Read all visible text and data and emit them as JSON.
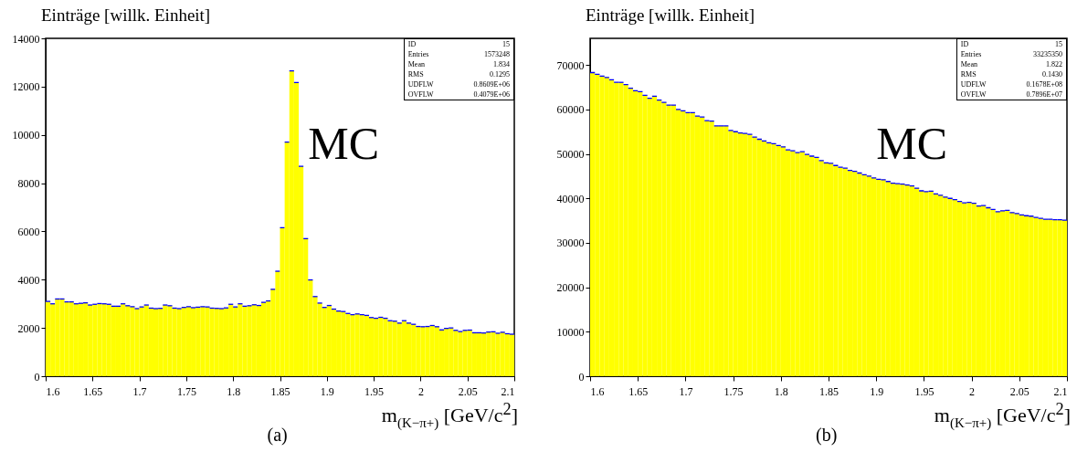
{
  "chart_data": [
    {
      "type": "histogram",
      "ylabel": "Einträge [willk. Einheit]",
      "xlabel": "m$_{(K−π+)}$ [GeV/c$^{2}$]",
      "annotations": [
        "MC",
        "ID",
        "15",
        "Entries",
        "1573248",
        "Mean",
        "1.834",
        "RMS",
        "0.1295",
        "UDFLW",
        "0.8609E+06",
        "OVFLW",
        "0.4079E+06",
        "(a)"
      ],
      "color": "#ffff00",
      "grid": false,
      "xlim": [
        1.6,
        2.1
      ],
      "xticks": [
        1.6,
        1.65,
        1.7,
        1.75,
        1.8,
        1.85,
        1.9,
        1.95,
        2,
        2.05,
        2.1
      ],
      "ylim": [
        0,
        14000
      ],
      "yticks": [
        0,
        2000,
        4000,
        6000,
        8000,
        10000,
        12000,
        14000
      ],
      "bins": [
        1.6,
        1.605,
        1.61,
        1.615,
        1.62,
        1.625,
        1.63,
        1.635,
        1.64,
        1.645,
        1.65,
        1.655,
        1.66,
        1.665,
        1.67,
        1.675,
        1.68,
        1.685,
        1.69,
        1.695,
        1.7,
        1.705,
        1.71,
        1.715,
        1.72,
        1.725,
        1.73,
        1.735,
        1.74,
        1.745,
        1.75,
        1.755,
        1.76,
        1.765,
        1.77,
        1.775,
        1.78,
        1.785,
        1.79,
        1.795,
        1.8,
        1.805,
        1.81,
        1.815,
        1.82,
        1.825,
        1.83,
        1.835,
        1.84,
        1.845,
        1.85,
        1.855,
        1.86,
        1.865,
        1.87,
        1.875,
        1.88,
        1.885,
        1.89,
        1.895,
        1.9,
        1.905,
        1.91,
        1.915,
        1.92,
        1.925,
        1.93,
        1.935,
        1.94,
        1.945,
        1.95,
        1.955,
        1.96,
        1.965,
        1.97,
        1.975,
        1.98,
        1.985,
        1.99,
        1.995,
        2,
        2.005,
        2.01,
        2.015,
        2.02,
        2.025,
        2.03,
        2.035,
        2.04,
        2.045,
        2.05,
        2.055,
        2.06,
        2.065,
        2.07,
        2.075,
        2.08,
        2.085,
        2.09,
        2.095,
        2.1
      ],
      "values": [
        3100,
        3000,
        3200,
        3200,
        3080,
        3080,
        3000,
        3020,
        3040,
        2950,
        2980,
        3010,
        3000,
        2980,
        2900,
        2900,
        3000,
        2920,
        2880,
        2800,
        2870,
        2950,
        2820,
        2800,
        2810,
        2950,
        2920,
        2820,
        2800,
        2850,
        2880,
        2840,
        2860,
        2880,
        2870,
        2820,
        2810,
        2800,
        2830,
        2980,
        2870,
        3000,
        2900,
        2920,
        2960,
        2930,
        3060,
        3120,
        3600,
        4350,
        6150,
        9700,
        12650,
        12170,
        8700,
        5700,
        3990,
        3300,
        3030,
        2850,
        2930,
        2780,
        2700,
        2680,
        2600,
        2550,
        2580,
        2550,
        2520,
        2430,
        2400,
        2440,
        2400,
        2300,
        2280,
        2200,
        2300,
        2200,
        2150,
        2060,
        2050,
        2060,
        2100,
        2050,
        1920,
        1980,
        2000,
        1900,
        1850,
        1900,
        1910,
        1800,
        1800,
        1790,
        1830,
        1840,
        1780,
        1820,
        1760,
        1740
      ]
    },
    {
      "type": "histogram",
      "ylabel": "Einträge [willk. Einheit]",
      "xlabel": "m$_{(K−π+)}$ [GeV/c$^{2}$]",
      "annotations": [
        "MC",
        "ID",
        "15",
        "Entries",
        "33235350",
        "Mean",
        "1.822",
        "RMS",
        "0.1430",
        "UDFLW",
        "0.1678E+08",
        "OVFLW",
        "0.7896E+07",
        "(b)"
      ],
      "color": "#ffff00",
      "grid": false,
      "xlim": [
        1.6,
        2.1
      ],
      "xticks": [
        1.6,
        1.65,
        1.7,
        1.75,
        1.8,
        1.85,
        1.9,
        1.95,
        2,
        2.05,
        2.1
      ],
      "ylim": [
        0,
        76000
      ],
      "yticks": [
        0,
        10000,
        20000,
        30000,
        40000,
        50000,
        60000,
        70000
      ],
      "bins": [
        1.6,
        1.605,
        1.61,
        1.615,
        1.62,
        1.625,
        1.63,
        1.635,
        1.64,
        1.645,
        1.65,
        1.655,
        1.66,
        1.665,
        1.67,
        1.675,
        1.68,
        1.685,
        1.69,
        1.695,
        1.7,
        1.705,
        1.71,
        1.715,
        1.72,
        1.725,
        1.73,
        1.735,
        1.74,
        1.745,
        1.75,
        1.755,
        1.76,
        1.765,
        1.77,
        1.775,
        1.78,
        1.785,
        1.79,
        1.795,
        1.8,
        1.805,
        1.81,
        1.815,
        1.82,
        1.825,
        1.83,
        1.835,
        1.84,
        1.845,
        1.85,
        1.855,
        1.86,
        1.865,
        1.87,
        1.875,
        1.88,
        1.885,
        1.89,
        1.895,
        1.9,
        1.905,
        1.91,
        1.915,
        1.92,
        1.925,
        1.93,
        1.935,
        1.94,
        1.945,
        1.95,
        1.955,
        1.96,
        1.965,
        1.97,
        1.975,
        1.98,
        1.985,
        1.99,
        1.995,
        2,
        2.005,
        2.01,
        2.015,
        2.02,
        2.025,
        2.03,
        2.035,
        2.04,
        2.045,
        2.05,
        2.055,
        2.06,
        2.065,
        2.07,
        2.075,
        2.08,
        2.085,
        2.09,
        2.095,
        2.1
      ],
      "values": [
        68300,
        67900,
        67500,
        67200,
        66700,
        66100,
        66100,
        65600,
        64800,
        64200,
        64000,
        63200,
        62500,
        63000,
        62100,
        61600,
        61000,
        61000,
        60000,
        59700,
        59300,
        59300,
        58500,
        58300,
        57500,
        57400,
        56300,
        56300,
        56300,
        55300,
        55000,
        54700,
        54600,
        54400,
        53800,
        53300,
        52900,
        52500,
        52300,
        51900,
        51600,
        50900,
        50700,
        50300,
        50500,
        49900,
        49500,
        49200,
        48500,
        48000,
        47900,
        47400,
        47000,
        46800,
        46300,
        46100,
        45700,
        45300,
        45000,
        44600,
        44300,
        44200,
        43800,
        43400,
        43300,
        43200,
        43000,
        42800,
        42300,
        41700,
        41500,
        41600,
        41000,
        40700,
        40300,
        40000,
        39700,
        39300,
        39000,
        39100,
        38900,
        38300,
        38400,
        37900,
        37500,
        37000,
        37200,
        37300,
        36800,
        36600,
        36300,
        36100,
        36000,
        35700,
        35500,
        35300,
        35300,
        35200,
        35200,
        35100
      ]
    }
  ]
}
